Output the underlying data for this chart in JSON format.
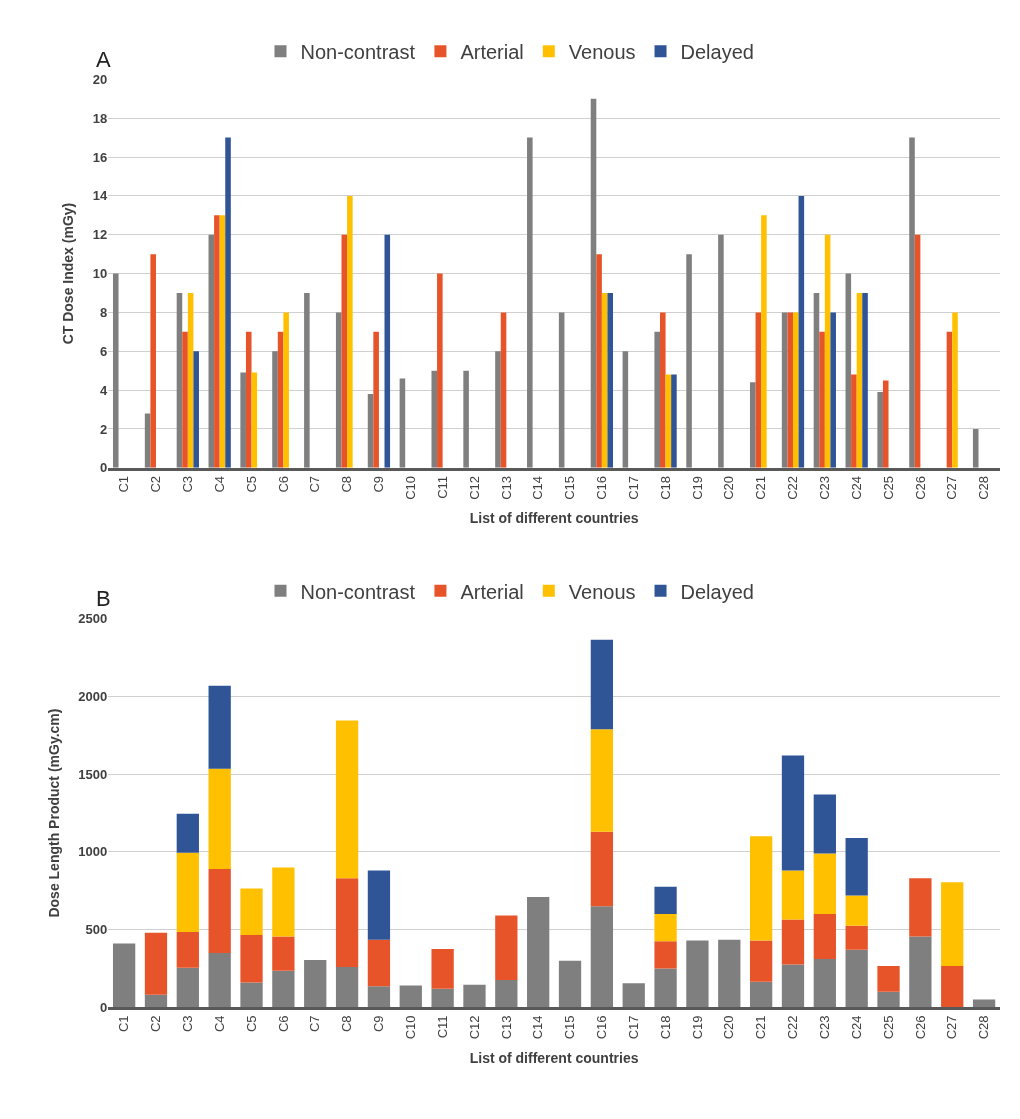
{
  "chart_data": [
    {
      "type": "bar",
      "xlabel": "List of different countries",
      "ylabel": "CT Dose Index (mGy)",
      "annotations": [
        "A"
      ],
      "categories": [
        "C1",
        "C2",
        "C3",
        "C4",
        "C5",
        "C6",
        "C7",
        "C8",
        "C9",
        "C10",
        "C11",
        "C12",
        "C13",
        "C14",
        "C15",
        "C16",
        "C17",
        "C18",
        "C19",
        "C20",
        "C21",
        "C22",
        "C23",
        "C24",
        "C25",
        "C26",
        "C27",
        "C28"
      ],
      "series": [
        {
          "name": "Non-contrast",
          "color": "#7f7f7f",
          "values": [
            10,
            2.8,
            9,
            12,
            4.9,
            6,
            9,
            8,
            3.8,
            4.6,
            5,
            5,
            6,
            17,
            8,
            19,
            6,
            7,
            11,
            12,
            4.4,
            8,
            9,
            10,
            3.9,
            17,
            null,
            2
          ]
        },
        {
          "name": "Arterial",
          "color": "#e8542a",
          "values": [
            null,
            11,
            7,
            13,
            7,
            7,
            null,
            12,
            7,
            null,
            10,
            null,
            8,
            null,
            null,
            11,
            null,
            8,
            null,
            null,
            8,
            8,
            7,
            4.8,
            4.5,
            12,
            7,
            null
          ]
        },
        {
          "name": "Venous",
          "color": "#ffc000",
          "values": [
            null,
            null,
            9,
            13,
            4.9,
            8,
            null,
            14,
            null,
            null,
            null,
            null,
            null,
            null,
            null,
            9,
            null,
            4.8,
            null,
            null,
            13,
            8,
            12,
            9,
            null,
            null,
            8,
            null
          ]
        },
        {
          "name": "Delayed",
          "color": "#2f5597",
          "values": [
            null,
            null,
            6,
            17,
            null,
            null,
            null,
            null,
            12,
            null,
            null,
            null,
            null,
            null,
            null,
            9,
            null,
            4.8,
            null,
            null,
            null,
            14,
            8,
            9,
            null,
            null,
            null,
            null
          ]
        }
      ],
      "ylim": [
        0,
        20
      ],
      "yticks": [
        0,
        2,
        4,
        6,
        8,
        10,
        12,
        14,
        16,
        18,
        20
      ],
      "grid": "y",
      "legend": "top"
    },
    {
      "type": "bar",
      "stacked": true,
      "xlabel": "List of different countries",
      "ylabel": "Dose Length Product (mGy.cm)",
      "annotations": [
        "B"
      ],
      "categories": [
        "C1",
        "C2",
        "C3",
        "C4",
        "C5",
        "C6",
        "C7",
        "C8",
        "C9",
        "C10",
        "C11",
        "C12",
        "C13",
        "C14",
        "C15",
        "C16",
        "C17",
        "C18",
        "C19",
        "C20",
        "C21",
        "C22",
        "C23",
        "C24",
        "C25",
        "C26",
        "C27",
        "C28"
      ],
      "series": [
        {
          "name": "Non-contrast",
          "color": "#7f7f7f",
          "values": [
            410,
            80,
            255,
            350,
            160,
            235,
            305,
            260,
            135,
            140,
            120,
            145,
            175,
            710,
            300,
            650,
            155,
            250,
            430,
            435,
            165,
            275,
            310,
            370,
            100,
            455,
            null,
            50
          ]
        },
        {
          "name": "Arterial",
          "color": "#e8542a",
          "values": [
            null,
            400,
            230,
            540,
            305,
            220,
            null,
            570,
            300,
            null,
            255,
            null,
            415,
            null,
            null,
            480,
            null,
            175,
            null,
            null,
            265,
            290,
            290,
            155,
            165,
            375,
            265,
            null
          ]
        },
        {
          "name": "Venous",
          "color": "#ffc000",
          "values": [
            null,
            null,
            510,
            645,
            300,
            445,
            null,
            1015,
            null,
            null,
            null,
            null,
            null,
            null,
            null,
            660,
            null,
            175,
            null,
            null,
            670,
            315,
            390,
            195,
            null,
            null,
            540,
            null
          ]
        },
        {
          "name": "Delayed",
          "color": "#2f5597",
          "values": [
            null,
            null,
            250,
            535,
            null,
            null,
            null,
            null,
            445,
            null,
            null,
            null,
            null,
            null,
            null,
            575,
            null,
            175,
            null,
            null,
            null,
            740,
            380,
            370,
            null,
            null,
            null,
            null
          ]
        }
      ],
      "ylim": [
        0,
        2500
      ],
      "yticks": [
        0,
        500,
        1000,
        1500,
        2000,
        2500
      ],
      "grid": "y",
      "legend": "top"
    }
  ]
}
